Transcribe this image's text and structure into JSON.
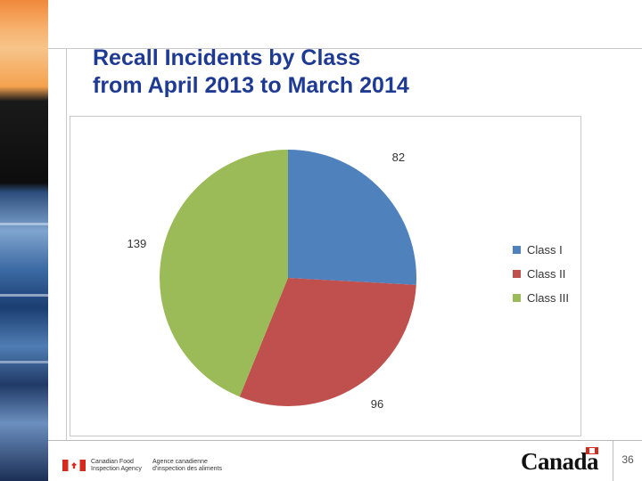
{
  "title_lines": [
    "Recall Incidents by Class",
    "from April 2013 to March 2014"
  ],
  "chart_data": {
    "type": "pie",
    "title": "Recall Incidents by Class from April 2013 to March 2014",
    "categories": [
      "Class I",
      "Class II",
      "Class III"
    ],
    "values": [
      82,
      96,
      139
    ],
    "colors": [
      "#4f81bd",
      "#c0504d",
      "#9bbb59"
    ],
    "legend_position": "right",
    "start_angle": "12 o'clock",
    "direction": "clockwise"
  },
  "footer": {
    "agency_en": "Canadian Food Inspection Agency",
    "agency_fr": "Agence canadienne d'inspection des aliments",
    "wordmark": "Canada",
    "page_number": "36"
  }
}
